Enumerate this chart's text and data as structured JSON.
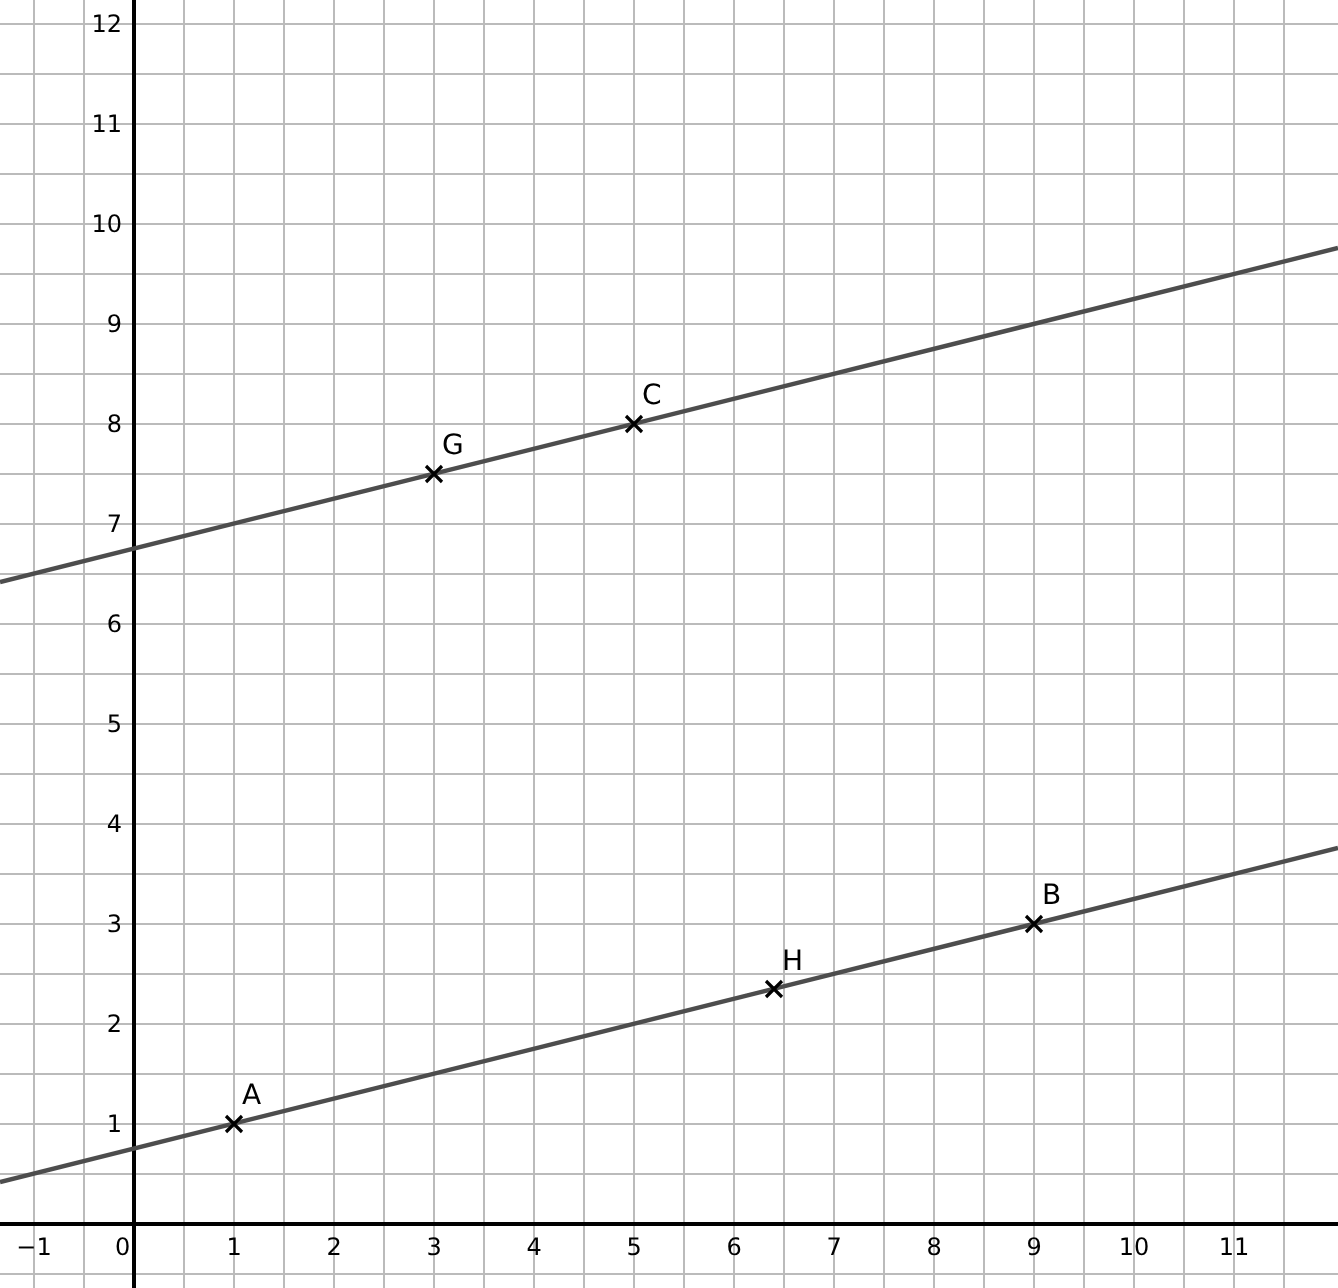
{
  "chart_data": {
    "type": "line",
    "xlim": [
      -1.34,
      12.04
    ],
    "ylim": [
      -0.64,
      12.24
    ],
    "xticks": [
      -1,
      0,
      1,
      2,
      3,
      4,
      5,
      6,
      7,
      8,
      9,
      10,
      11
    ],
    "yticks": [
      1,
      2,
      3,
      4,
      5,
      6,
      7,
      8,
      9,
      10,
      11,
      12
    ],
    "grid": true,
    "series": [
      {
        "color": "#4d4d4d",
        "x": [
          -1.34,
          12.04
        ],
        "values": [
          0.42,
          3.76
        ],
        "marker": "none",
        "line_style": "solid"
      },
      {
        "color": "#4d4d4d",
        "x": [
          -1.34,
          12.04
        ],
        "values": [
          6.42,
          9.76
        ],
        "marker": "none",
        "line_style": "solid"
      },
      {
        "type": "scatter",
        "color": "#000000",
        "x": [
          1,
          9,
          6.4,
          3,
          5
        ],
        "values": [
          1,
          3,
          2.35,
          7.5,
          8
        ],
        "marker": "cross"
      }
    ],
    "annotations": [
      {
        "text": "A",
        "x": 1,
        "y": 1
      },
      {
        "text": "B",
        "x": 9,
        "y": 3
      },
      {
        "text": "H",
        "x": 6.4,
        "y": 2.35
      },
      {
        "text": "G",
        "x": 3,
        "y": 7.5
      },
      {
        "text": "C",
        "x": 5,
        "y": 8
      }
    ]
  }
}
